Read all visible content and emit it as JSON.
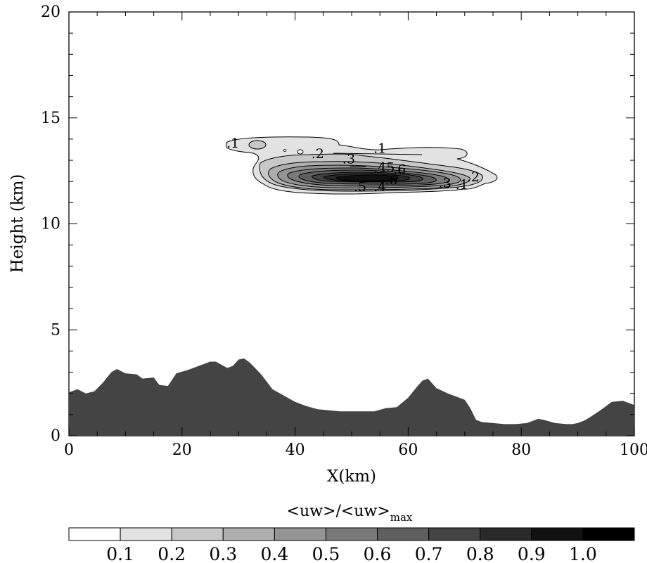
{
  "chart_data": {
    "type": "contour",
    "xlabel": "X(km)",
    "ylabel": "Height (km)",
    "xlim": [
      0,
      100
    ],
    "ylim": [
      0,
      20
    ],
    "x_ticks": [
      "0",
      "20",
      "40",
      "60",
      "80",
      "100"
    ],
    "y_ticks": [
      "0",
      "5",
      "10",
      "15",
      "20"
    ],
    "x_tick_values": [
      0,
      20,
      40,
      60,
      80,
      100
    ],
    "y_tick_values": [
      0,
      5,
      10,
      15,
      20
    ],
    "terrain": {
      "x": [
        0,
        1.5,
        3,
        4.5,
        6,
        7.5,
        8.5,
        10,
        12,
        13,
        15,
        16,
        17.5,
        19,
        21,
        23,
        25,
        26,
        28,
        29,
        30,
        31,
        32,
        34,
        36,
        38,
        40,
        42,
        44,
        46,
        48,
        50,
        52,
        54,
        56,
        58,
        60,
        61.5,
        62.5,
        63.5,
        65,
        67,
        69,
        70,
        71,
        72,
        73,
        75,
        77,
        79,
        81,
        82,
        83,
        84,
        86,
        88,
        89,
        90,
        91,
        92,
        94,
        96,
        98,
        99,
        100
      ],
      "height_km": [
        2.05,
        2.2,
        2.0,
        2.1,
        2.5,
        3.0,
        3.15,
        2.95,
        2.9,
        2.7,
        2.75,
        2.4,
        2.35,
        2.95,
        3.1,
        3.3,
        3.5,
        3.5,
        3.2,
        3.3,
        3.6,
        3.65,
        3.45,
        2.9,
        2.2,
        1.9,
        1.6,
        1.4,
        1.25,
        1.2,
        1.15,
        1.15,
        1.15,
        1.15,
        1.3,
        1.35,
        1.8,
        2.3,
        2.6,
        2.7,
        2.25,
        2.0,
        1.8,
        1.7,
        1.3,
        0.75,
        0.65,
        0.6,
        0.55,
        0.55,
        0.6,
        0.7,
        0.8,
        0.75,
        0.6,
        0.55,
        0.55,
        0.6,
        0.7,
        0.85,
        1.2,
        1.6,
        1.65,
        1.55,
        1.45
      ]
    },
    "contour_levels": [
      0.1,
      0.2,
      0.3,
      0.4,
      0.5,
      0.6,
      0.7,
      0.8,
      0.9,
      1.0
    ],
    "contour_labels": [
      {
        "text": ".1",
        "x": 29,
        "y": 13.6
      },
      {
        "text": ".1",
        "x": 55,
        "y": 13.35
      },
      {
        "text": ".2",
        "x": 44,
        "y": 13.1
      },
      {
        "text": ".3",
        "x": 49.5,
        "y": 12.85
      },
      {
        "text": ".4",
        "x": 55,
        "y": 12.45
      },
      {
        "text": ".5",
        "x": 56.5,
        "y": 12.45
      },
      {
        "text": ".6",
        "x": 58.5,
        "y": 12.35
      },
      {
        "text": ".5",
        "x": 51.5,
        "y": 11.55
      },
      {
        "text": ".4",
        "x": 55,
        "y": 11.55
      },
      {
        "text": ".6",
        "x": 57,
        "y": 11.85
      },
      {
        "text": ".3",
        "x": 66.5,
        "y": 11.7
      },
      {
        "text": ".1",
        "x": 69.5,
        "y": 11.65
      },
      {
        "text": ".2",
        "x": 71.5,
        "y": 12.0
      }
    ],
    "colorbar": {
      "title_main": "<uw>/<uw>",
      "title_sub": "max",
      "tick_labels": [
        "0.1",
        "0.2",
        "0.3",
        "0.4",
        "0.5",
        "0.6",
        "0.7",
        "0.8",
        "0.9",
        "1.0"
      ],
      "colors": [
        "#ffffff",
        "#e2e2e2",
        "#c8c8c8",
        "#aeaeae",
        "#949494",
        "#7a7a7a",
        "#5f5f5f",
        "#444444",
        "#2a2a2a",
        "#111111"
      ]
    },
    "terrain_color": "#444444"
  }
}
